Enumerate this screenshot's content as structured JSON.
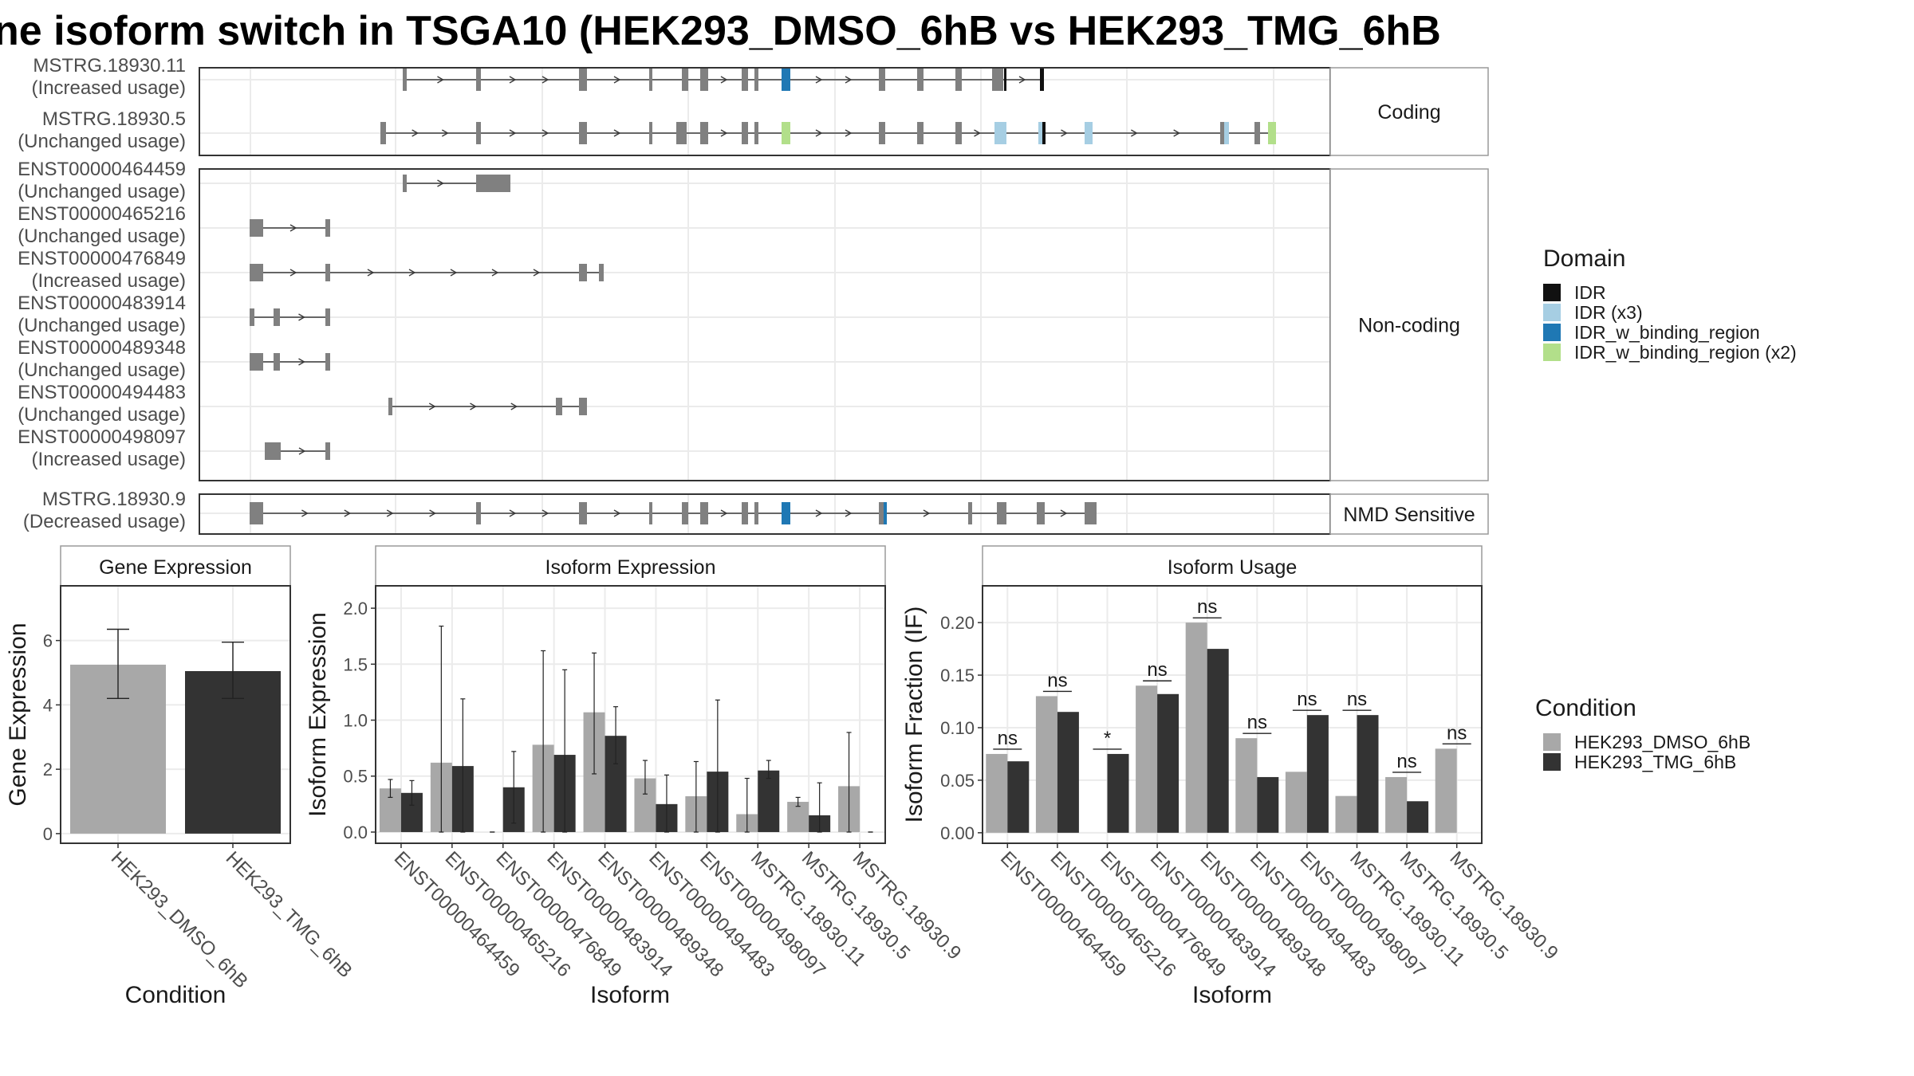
{
  "title": "ne isoform switch in TSGA10 (HEK293_DMSO_6hB vs HEK293_TMG_6hB",
  "colors": {
    "exon": "#808080",
    "idr": "#111111",
    "idr_x3": "#a6cee3",
    "idr_binding": "#1f78b4",
    "idr_binding_x2": "#b2df8a",
    "dmso": "#a8a8a8",
    "tmg": "#333333"
  },
  "structure": {
    "facets": [
      {
        "label": "Coding",
        "transcripts": [
          {
            "id": "MSTRG.18930.11",
            "usage": "(Increased usage)"
          },
          {
            "id": "MSTRG.18930.5",
            "usage": "(Unchanged usage)"
          }
        ]
      },
      {
        "label": "Non-coding",
        "transcripts": [
          {
            "id": "ENST00000464459",
            "usage": "(Unchanged usage)"
          },
          {
            "id": "ENST00000465216",
            "usage": "(Unchanged usage)"
          },
          {
            "id": "ENST00000476849",
            "usage": "(Increased usage)"
          },
          {
            "id": "ENST00000483914",
            "usage": "(Unchanged usage)"
          },
          {
            "id": "ENST00000489348",
            "usage": "(Unchanged usage)"
          },
          {
            "id": "ENST00000494483",
            "usage": "(Unchanged usage)"
          },
          {
            "id": "ENST00000498097",
            "usage": "(Increased usage)"
          }
        ]
      },
      {
        "label": "NMD Sensitive",
        "transcripts": [
          {
            "id": "MSTRG.18930.9",
            "usage": "(Decreased usage)"
          }
        ]
      }
    ],
    "legend": {
      "title": "Domain",
      "items": [
        {
          "label": "IDR",
          "color": "#111111"
        },
        {
          "label": "IDR (x3)",
          "color": "#a6cee3"
        },
        {
          "label": "IDR_w_binding_region",
          "color": "#1f78b4"
        },
        {
          "label": "IDR_w_binding_region (x2)",
          "color": "#b2df8a"
        }
      ]
    }
  },
  "chart_data": [
    {
      "type": "bar",
      "title": "Gene Expression",
      "xlabel": "Condition",
      "ylabel": "Gene Expression",
      "ylim": [
        -0.3,
        7.7
      ],
      "yticks": [
        0,
        2,
        4,
        6
      ],
      "categories": [
        "HEK293_DMSO_6hB",
        "HEK293_TMG_6hB"
      ],
      "values": [
        5.25,
        5.05
      ],
      "error_low": [
        4.2,
        4.2
      ],
      "error_high": [
        6.35,
        5.95
      ]
    },
    {
      "type": "bar",
      "title": "Isoform Expression",
      "xlabel": "Isoform",
      "ylabel": "Isoform Expression",
      "ylim": [
        -0.1,
        2.2
      ],
      "yticks": [
        "0.0",
        "0.5",
        "1.0",
        "1.5",
        "2.0"
      ],
      "categories": [
        "ENST00000464459",
        "ENST00000465216",
        "ENST00000476849",
        "ENST00000483914",
        "ENST00000489348",
        "ENST00000494483",
        "ENST00000498097",
        "MSTRG.18930.11",
        "MSTRG.18930.5",
        "MSTRG.18930.9"
      ],
      "series": [
        {
          "name": "HEK293_DMSO_6hB",
          "values": [
            0.39,
            0.62,
            0.0,
            0.78,
            1.07,
            0.48,
            0.32,
            0.16,
            0.27,
            0.41
          ],
          "error_low": [
            0.31,
            0.0,
            0.0,
            0.0,
            0.52,
            0.34,
            0.0,
            0.0,
            0.23,
            0.0
          ],
          "error_high": [
            0.47,
            1.84,
            0.0,
            1.62,
            1.6,
            0.64,
            0.63,
            0.48,
            0.31,
            0.89
          ]
        },
        {
          "name": "HEK293_TMG_6hB",
          "values": [
            0.35,
            0.59,
            0.4,
            0.69,
            0.86,
            0.25,
            0.54,
            0.55,
            0.15,
            0.0
          ],
          "error_low": [
            0.24,
            0.0,
            0.08,
            0.0,
            0.61,
            0.0,
            0.0,
            0.48,
            0.0,
            0.0
          ],
          "error_high": [
            0.46,
            1.19,
            0.72,
            1.45,
            1.12,
            0.51,
            1.18,
            0.64,
            0.44,
            0.0
          ]
        }
      ]
    },
    {
      "type": "bar",
      "title": "Isoform Usage",
      "xlabel": "Isoform",
      "ylabel": "Isoform Fraction (IF)",
      "ylim": [
        -0.01,
        0.235
      ],
      "yticks": [
        "0.00",
        "0.05",
        "0.10",
        "0.15",
        "0.20"
      ],
      "categories": [
        "ENST00000464459",
        "ENST00000465216",
        "ENST00000476849",
        "ENST00000483914",
        "ENST00000489348",
        "ENST00000494483",
        "ENST00000498097",
        "MSTRG.18930.11",
        "MSTRG.18930.5",
        "MSTRG.18930.9"
      ],
      "series": [
        {
          "name": "HEK293_DMSO_6hB",
          "values": [
            0.075,
            0.13,
            0.0,
            0.14,
            0.2,
            0.09,
            0.058,
            0.035,
            0.053,
            0.08
          ]
        },
        {
          "name": "HEK293_TMG_6hB",
          "values": [
            0.068,
            0.115,
            0.075,
            0.132,
            0.175,
            0.053,
            0.112,
            0.112,
            0.03,
            0.0
          ]
        }
      ],
      "significance": [
        "ns",
        "ns",
        "*",
        "ns",
        "ns",
        "ns",
        "ns",
        "ns",
        "ns",
        "ns"
      ]
    }
  ],
  "condition_legend": {
    "title": "Condition",
    "items": [
      {
        "label": "HEK293_DMSO_6hB",
        "color": "#a8a8a8"
      },
      {
        "label": "HEK293_TMG_6hB",
        "color": "#333333"
      }
    ]
  }
}
